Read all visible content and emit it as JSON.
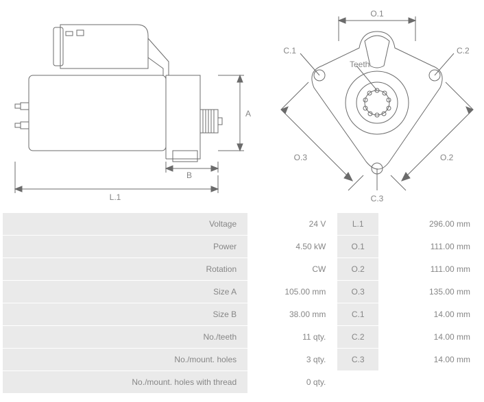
{
  "diagram": {
    "type": "engineering-drawing",
    "stroke_color": "#6b6b6b",
    "stroke_width": 1,
    "background": "#ffffff",
    "label_color": "#858585",
    "label_fontsize": 12,
    "side_view_labels": {
      "A": "A",
      "B": "B",
      "L1": "L.1"
    },
    "front_view_labels": {
      "O1": "O.1",
      "O2": "O.2",
      "O3": "O.3",
      "C1": "C.1",
      "C2": "C.2",
      "C3": "C.3",
      "Teeth": "Teeth"
    }
  },
  "specs": {
    "rows": [
      {
        "label1": "Voltage",
        "val1": "24 V",
        "label2": "L.1",
        "val2": "296.00 mm"
      },
      {
        "label1": "Power",
        "val1": "4.50 kW",
        "label2": "O.1",
        "val2": "111.00 mm"
      },
      {
        "label1": "Rotation",
        "val1": "CW",
        "label2": "O.2",
        "val2": "111.00 mm"
      },
      {
        "label1": "Size A",
        "val1": "105.00 mm",
        "label2": "O.3",
        "val2": "135.00 mm"
      },
      {
        "label1": "Size B",
        "val1": "38.00 mm",
        "label2": "C.1",
        "val2": "14.00 mm"
      },
      {
        "label1": "No./teeth",
        "val1": "11 qty.",
        "label2": "C.2",
        "val2": "14.00 mm"
      },
      {
        "label1": "No./mount. holes",
        "val1": "3 qty.",
        "label2": "C.3",
        "val2": "14.00 mm"
      },
      {
        "label1": "No./mount. holes with thread",
        "val1": "0 qty.",
        "label2": "",
        "val2": ""
      }
    ],
    "label_bg": "#eaeaea",
    "text_color": "#868686",
    "fontsize": 12
  }
}
